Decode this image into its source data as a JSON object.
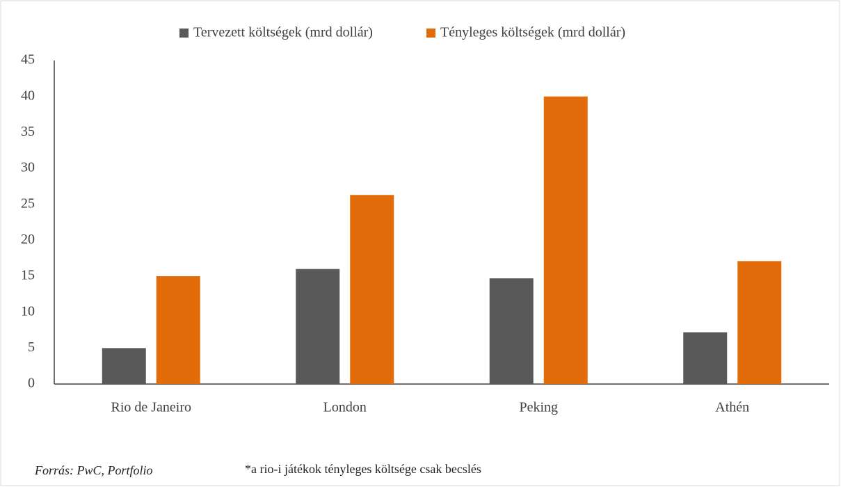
{
  "chart_data": {
    "type": "bar",
    "categories": [
      "Rio de Janeiro",
      "London",
      "Peking",
      "Athén"
    ],
    "series": [
      {
        "name": "Tervezett költségek (mrd dollár)",
        "color": "#595959",
        "values": [
          5,
          16,
          14.7,
          7.2
        ]
      },
      {
        "name": "Tényleges költségek (mrd dollár)",
        "color": "#e36c0a",
        "values": [
          15,
          26.3,
          40,
          17.1
        ]
      }
    ],
    "ylim": [
      0,
      45
    ],
    "yticks": [
      0,
      5,
      10,
      15,
      20,
      25,
      30,
      35,
      40,
      45
    ],
    "grid": false,
    "legend": "top",
    "annotations": [
      "Forrás: PwC, Portfolio",
      "*a rio-i játékok tényleges költsége csak becslés"
    ]
  }
}
